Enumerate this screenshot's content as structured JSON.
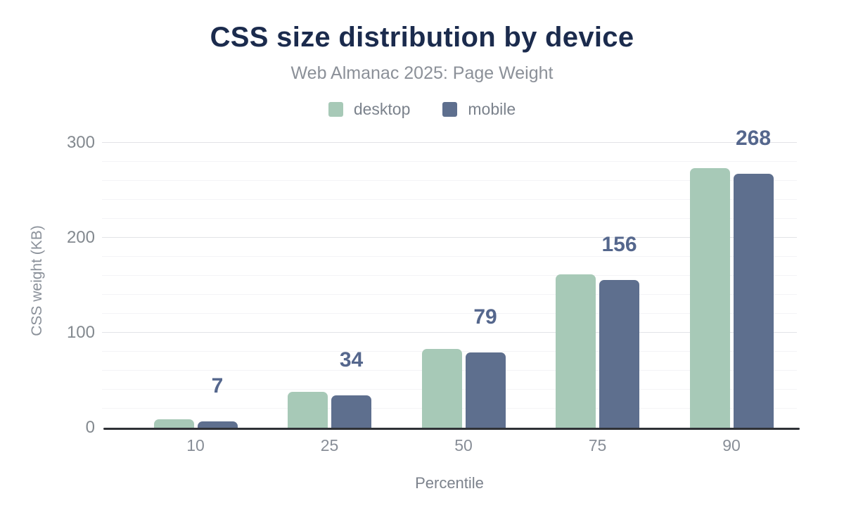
{
  "chart_data": {
    "type": "bar",
    "title": "CSS size distribution by device",
    "subtitle": "Web Almanac 2025: Page Weight",
    "xlabel": "Percentile",
    "ylabel": "CSS weight (KB)",
    "categories": [
      "10",
      "25",
      "50",
      "75",
      "90"
    ],
    "series": [
      {
        "name": "desktop",
        "color": "#a7c9b7",
        "values": [
          9,
          38,
          83,
          162,
          274
        ]
      },
      {
        "name": "mobile",
        "color": "#5e6f8e",
        "values": [
          7,
          34,
          79,
          156,
          268
        ]
      }
    ],
    "bar_labels": {
      "labeled_series": "mobile",
      "values": [
        "7",
        "34",
        "79",
        "156",
        "268"
      ],
      "color": "#55678d"
    },
    "y_ticks": [
      0,
      100,
      200,
      300
    ],
    "ylim": [
      0,
      310
    ],
    "grid": {
      "minor_step": 20,
      "major_step": 100,
      "minor_color": "#f4f4f6",
      "major_color": "#e2e3e7"
    },
    "legend_position": "top",
    "axis_line_color": "#2f3136",
    "background": "#ffffff",
    "title_color": "#1b2b4d",
    "subtitle_color": "#8b9098"
  }
}
